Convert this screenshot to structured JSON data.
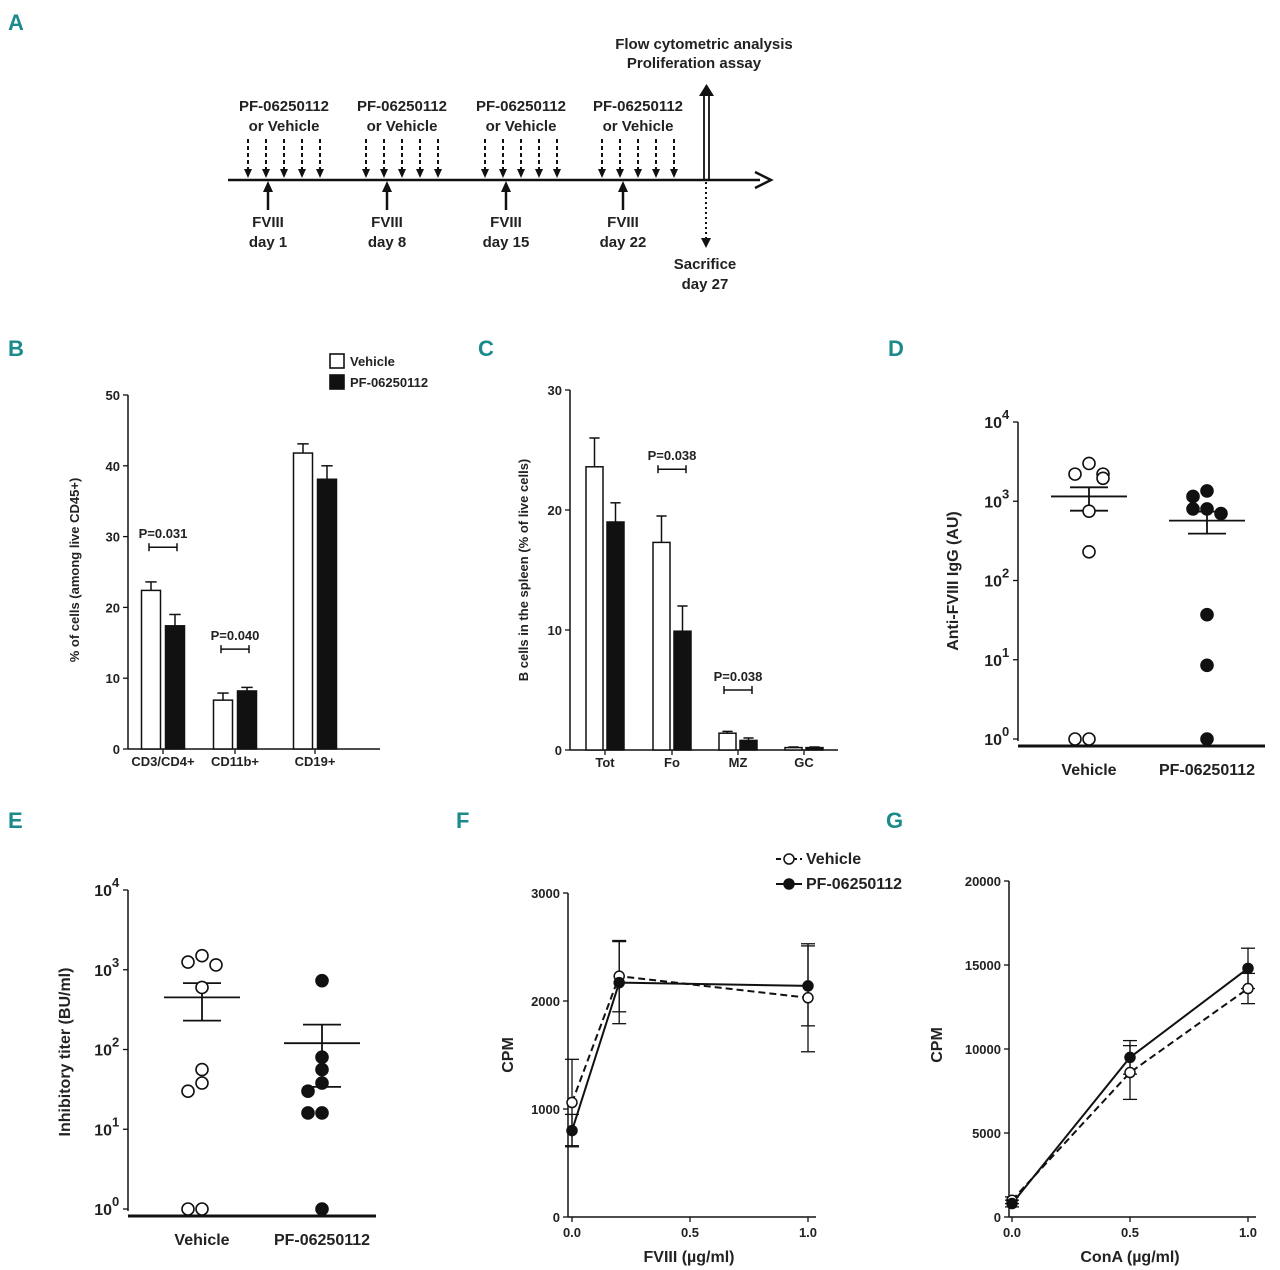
{
  "colors": {
    "teal": "#1a8a8c",
    "ink": "#1a1a1a"
  },
  "panelA": {
    "label": "A",
    "treatment_label_1": "PF-06250112",
    "treatment_label_2": "or Vehicle",
    "injections": [
      {
        "line1": "FVIII",
        "line2": "day 1"
      },
      {
        "line1": "FVIII",
        "line2": "day 8"
      },
      {
        "line1": "FVIII",
        "line2": "day 15"
      },
      {
        "line1": "FVIII",
        "line2": "day 22"
      }
    ],
    "analysis_1": "Flow cytometric analysis",
    "analysis_2": "Proliferation assay",
    "sacrifice_1": "Sacrifice",
    "sacrifice_2": "day 27"
  },
  "chart_data": [
    {
      "id": "B",
      "type": "bar",
      "label": "B",
      "ylabel": "% of cells (among live CD45+)",
      "ylim": [
        0,
        50
      ],
      "yticks": [
        0,
        10,
        20,
        30,
        40,
        50
      ],
      "categories": [
        "CD3/CD4+",
        "CD11b+",
        "CD19+"
      ],
      "series": [
        {
          "name": "Vehicle",
          "fill": "white",
          "values": [
            22.4,
            6.9,
            41.8
          ],
          "errors": [
            1.2,
            1.0,
            1.3
          ]
        },
        {
          "name": "PF-06250112",
          "fill": "black",
          "values": [
            17.4,
            8.2,
            38.1
          ],
          "errors": [
            1.6,
            0.5,
            1.9
          ]
        }
      ],
      "annotations": [
        {
          "text": "P=0.031",
          "category": 0,
          "y": 28.5
        },
        {
          "text": "P=0.040",
          "category": 1,
          "y": 14.1
        }
      ]
    },
    {
      "id": "C",
      "type": "bar",
      "label": "C",
      "ylabel": "B cells in the spleen (% of live cells)",
      "ylim": [
        0,
        30
      ],
      "yticks": [
        0,
        10,
        20,
        30
      ],
      "categories": [
        "Tot",
        "Fo",
        "MZ",
        "GC"
      ],
      "series": [
        {
          "name": "Vehicle",
          "fill": "white",
          "values": [
            23.6,
            17.3,
            1.4,
            0.2
          ],
          "errors": [
            2.4,
            2.2,
            0.15,
            0.05
          ]
        },
        {
          "name": "PF-06250112",
          "fill": "black",
          "values": [
            19.0,
            9.9,
            0.8,
            0.2
          ],
          "errors": [
            1.6,
            2.1,
            0.2,
            0.05
          ]
        }
      ],
      "annotations": [
        {
          "text": "P=0.038",
          "category": 1,
          "y": 23.4
        },
        {
          "text": "P=0.038",
          "category": 2,
          "y": 5.0
        }
      ]
    },
    {
      "id": "D",
      "type": "scatter",
      "label": "D",
      "ylabel": "Anti-FVIII IgG (AU)",
      "yscale": "log",
      "ylim": [
        1,
        10000
      ],
      "yticks": [
        {
          "base": "10",
          "exp": "0",
          "v": 1
        },
        {
          "base": "10",
          "exp": "1",
          "v": 10
        },
        {
          "base": "10",
          "exp": "2",
          "v": 100
        },
        {
          "base": "10",
          "exp": "3",
          "v": 1000
        },
        {
          "base": "10",
          "exp": "4",
          "v": 10000
        }
      ],
      "categories": [
        "Vehicle",
        "PF-06250112"
      ],
      "groups": [
        {
          "name": "Vehicle",
          "fill": "white",
          "mean": 1150,
          "sem_low": 760,
          "sem_high": 1500,
          "points": [
            3000,
            2200,
            2200,
            1950,
            750,
            230,
            1,
            1
          ]
        },
        {
          "name": "PF-06250112",
          "fill": "black",
          "mean": 570,
          "sem_low": 390,
          "sem_high": 740,
          "points": [
            1350,
            1150,
            800,
            800,
            700,
            37,
            8.5,
            1
          ]
        }
      ]
    },
    {
      "id": "E",
      "type": "scatter",
      "label": "E",
      "ylabel": "Inhibitory titer (BU/ml)",
      "yscale": "log",
      "ylim": [
        1,
        10000
      ],
      "yticks": [
        {
          "base": "10",
          "exp": "0",
          "v": 1
        },
        {
          "base": "10",
          "exp": "1",
          "v": 10
        },
        {
          "base": "10",
          "exp": "2",
          "v": 100
        },
        {
          "base": "10",
          "exp": "3",
          "v": 1000
        },
        {
          "base": "10",
          "exp": "4",
          "v": 10000
        }
      ],
      "categories": [
        "Vehicle",
        "PF-06250112"
      ],
      "groups": [
        {
          "name": "Vehicle",
          "fill": "white",
          "mean": 450,
          "sem_low": 230,
          "sem_high": 680,
          "points": [
            1500,
            1250,
            1150,
            600,
            56,
            38,
            30,
            1,
            1
          ]
        },
        {
          "name": "PF-06250112",
          "fill": "black",
          "mean": 120,
          "sem_low": 34,
          "sem_high": 205,
          "points": [
            730,
            80,
            56,
            38,
            30,
            16,
            16,
            1
          ]
        }
      ]
    },
    {
      "id": "F",
      "type": "line",
      "label": "F",
      "xlabel": "FVIII (µg/ml)",
      "ylabel": "CPM",
      "xlim": [
        0,
        1.0
      ],
      "ylim": [
        0,
        3000
      ],
      "xticks": [
        "0.0",
        "0.5",
        "1.0"
      ],
      "yticks": [
        "0",
        "1000",
        "2000",
        "3000"
      ],
      "x": [
        0,
        0.2,
        1.0
      ],
      "series": [
        {
          "name": "Vehicle",
          "fill": "white",
          "dash": true,
          "values": [
            1060,
            2230,
            2030
          ],
          "errors": [
            400,
            330,
            500
          ]
        },
        {
          "name": "PF-06250112",
          "fill": "black",
          "dash": false,
          "values": [
            800,
            2170,
            2140
          ],
          "errors": [
            150,
            380,
            370
          ]
        }
      ]
    },
    {
      "id": "G",
      "type": "line",
      "label": "G",
      "xlabel": "ConA (µg/ml)",
      "ylabel": "CPM",
      "xlim": [
        0,
        1.0
      ],
      "ylim": [
        0,
        20000
      ],
      "xticks": [
        "0.0",
        "0.5",
        "1.0"
      ],
      "yticks": [
        "0",
        "5000",
        "10000",
        "15000",
        "20000"
      ],
      "x": [
        0,
        0.5,
        1.0
      ],
      "series": [
        {
          "name": "Vehicle",
          "fill": "white",
          "dash": true,
          "values": [
            1000,
            8600,
            13600
          ],
          "errors": [
            200,
            1600,
            900
          ]
        },
        {
          "name": "PF-06250112",
          "fill": "black",
          "dash": false,
          "values": [
            800,
            9500,
            14800
          ],
          "errors": [
            200,
            1000,
            1200
          ]
        }
      ]
    }
  ]
}
